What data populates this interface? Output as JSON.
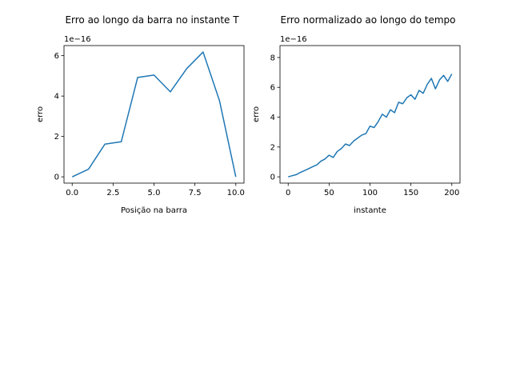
{
  "chart_data": [
    {
      "type": "line",
      "title": "Erro ao longo da barra no instante T",
      "xlabel": "Posição na barra",
      "ylabel": "erro",
      "offset_text": "1e−16",
      "xlim": [
        -0.5,
        10.5
      ],
      "ylim": [
        -0.31,
        6.5
      ],
      "x_ticks": [
        0,
        2.5,
        5,
        7.5,
        10
      ],
      "x_tick_labels": [
        "0.0",
        "2.5",
        "5.0",
        "7.5",
        "10.0"
      ],
      "y_ticks": [
        0,
        2,
        4,
        6
      ],
      "y_tick_labels": [
        "0",
        "2",
        "4",
        "6"
      ],
      "grid": false,
      "color": "#1f77b4",
      "x": [
        0,
        1,
        2,
        3,
        4,
        5,
        6,
        7,
        8,
        9,
        10
      ],
      "values": [
        0,
        0.38,
        1.62,
        1.74,
        4.92,
        5.04,
        4.21,
        5.36,
        6.18,
        3.78,
        0
      ]
    },
    {
      "type": "line",
      "title": "Erro normalizado ao longo do tempo",
      "xlabel": "instante",
      "ylabel": "erro",
      "offset_text": "1e−16",
      "xlim": [
        -10,
        210
      ],
      "ylim": [
        -0.42,
        8.8
      ],
      "x_ticks": [
        0,
        50,
        100,
        150,
        200
      ],
      "x_tick_labels": [
        "0",
        "50",
        "100",
        "150",
        "200"
      ],
      "y_ticks": [
        0,
        2,
        4,
        6,
        8
      ],
      "y_tick_labels": [
        "0",
        "2",
        "4",
        "6",
        "8"
      ],
      "grid": false,
      "color": "#1f77b4",
      "x": [
        0,
        5,
        10,
        15,
        20,
        25,
        30,
        35,
        40,
        45,
        50,
        55,
        60,
        65,
        70,
        75,
        80,
        85,
        90,
        95,
        100,
        105,
        110,
        115,
        120,
        125,
        130,
        135,
        140,
        145,
        150,
        155,
        160,
        165,
        170,
        175,
        180,
        185,
        190,
        195,
        200
      ],
      "values": [
        0,
        0.08,
        0.15,
        0.3,
        0.42,
        0.55,
        0.68,
        0.8,
        1.05,
        1.2,
        1.45,
        1.3,
        1.7,
        1.9,
        2.2,
        2.1,
        2.4,
        2.6,
        2.8,
        2.9,
        3.4,
        3.3,
        3.7,
        4.2,
        4.0,
        4.5,
        4.3,
        5.0,
        4.9,
        5.3,
        5.5,
        5.2,
        5.8,
        5.6,
        6.2,
        6.6,
        5.9,
        6.5,
        6.8,
        6.4,
        6.9
      ]
    }
  ]
}
